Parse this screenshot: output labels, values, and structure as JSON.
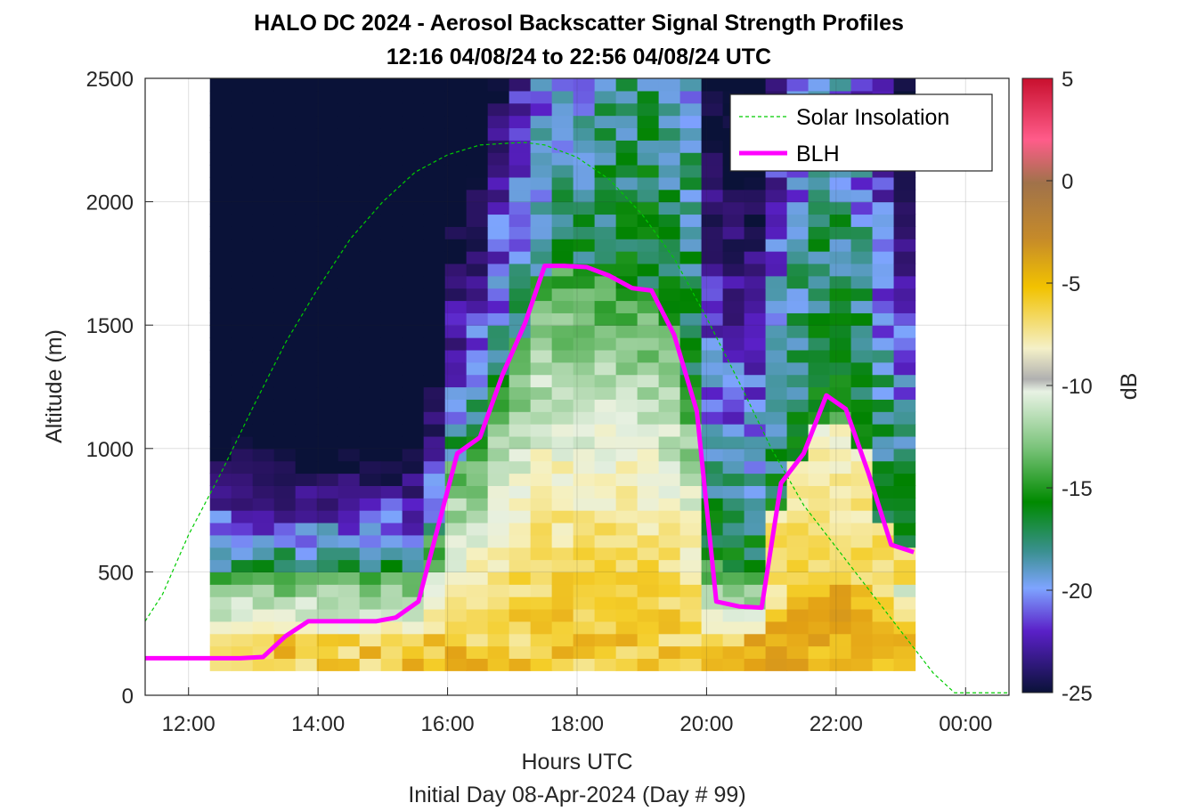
{
  "chart_data": {
    "type": "heatmap",
    "title": "HALO DC 2024 - Aerosol Backscatter Signal Strength Profiles",
    "subtitle": "12:16 04/08/24 to 22:56 04/08/24  UTC",
    "xlabel": "Hours UTC",
    "xlabel2": "Initial Day 08-Apr-2024 (Day # 99)",
    "ylabel": "Altitude (m)",
    "xlim": [
      11.33,
      24.67
    ],
    "ylim": [
      0,
      2500
    ],
    "x_ticks": [
      12,
      14,
      16,
      18,
      20,
      22,
      24
    ],
    "x_tick_labels": [
      "12:00",
      "14:00",
      "16:00",
      "18:00",
      "20:00",
      "22:00",
      "00:00"
    ],
    "y_ticks": [
      0,
      500,
      1000,
      1500,
      2000,
      2500
    ],
    "y_tick_labels": [
      "0",
      "500",
      "1000",
      "1500",
      "2000",
      "2500"
    ],
    "colorbar": {
      "label": "dB",
      "range": [
        -25,
        5
      ],
      "ticks": [
        5,
        0,
        -5,
        -10,
        -15,
        -20,
        -25
      ],
      "tick_labels": [
        "5",
        "0",
        "-5",
        "-10",
        "-15",
        "-20",
        "-25"
      ]
    },
    "grid": true,
    "legend_placement": "top-right",
    "heatmap_extent": {
      "x": [
        12.33,
        22.93
      ],
      "y": [
        100,
        2500
      ]
    },
    "series": [
      {
        "name": "Solar Insolation",
        "style": "dashed",
        "color": "#00cc00",
        "x": [
          11.33,
          11.6,
          12.0,
          12.5,
          13.0,
          13.5,
          14.0,
          14.5,
          15.0,
          15.5,
          16.0,
          16.5,
          17.0,
          17.2,
          17.5,
          18.0,
          18.5,
          19.0,
          19.5,
          20.0,
          20.5,
          21.0,
          21.5,
          22.0,
          22.5,
          23.0,
          23.5,
          23.83,
          24.0,
          24.67
        ],
        "y": [
          300,
          410,
          650,
          900,
          1170,
          1430,
          1650,
          1850,
          2000,
          2120,
          2190,
          2230,
          2238,
          2240,
          2230,
          2180,
          2090,
          1950,
          1770,
          1530,
          1270,
          1000,
          770,
          600,
          430,
          260,
          90,
          10,
          10,
          10
        ]
      },
      {
        "name": "BLH",
        "style": "solid",
        "color": "#ff00ff",
        "x": [
          11.33,
          12.3,
          12.8,
          13.15,
          13.5,
          13.85,
          14.2,
          14.55,
          14.9,
          15.2,
          15.55,
          15.85,
          16.15,
          16.5,
          16.85,
          17.2,
          17.5,
          17.8,
          18.15,
          18.5,
          18.85,
          19.15,
          19.5,
          19.85,
          20.15,
          20.5,
          20.85,
          21.15,
          21.5,
          21.85,
          22.15,
          22.5,
          22.85,
          23.2
        ],
        "y": [
          150,
          150,
          150,
          155,
          240,
          300,
          300,
          300,
          300,
          315,
          380,
          680,
          980,
          1045,
          1300,
          1510,
          1740,
          1740,
          1735,
          1700,
          1650,
          1640,
          1460,
          1150,
          380,
          360,
          355,
          860,
          980,
          1215,
          1160,
          900,
          610,
          580
        ]
      }
    ]
  },
  "legend": {
    "items": [
      {
        "label": "Solar Insolation",
        "color": "#00cc00",
        "style": "dashed"
      },
      {
        "label": "BLH",
        "color": "#ff00ff",
        "style": "solid"
      }
    ]
  }
}
